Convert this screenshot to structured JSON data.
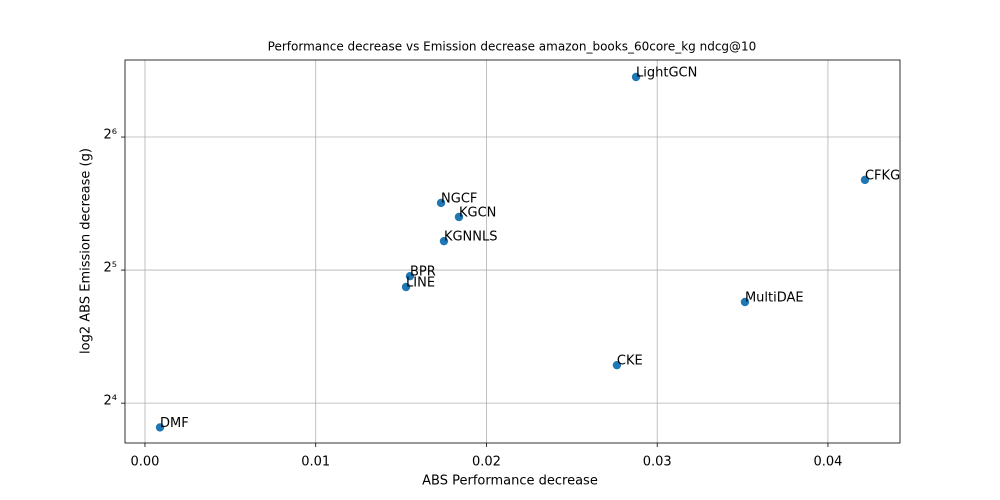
{
  "chart_data": {
    "type": "scatter",
    "title": "Performance decrease vs Emission decrease amazon_books_60core_kg ndcg@10",
    "x_label": "ABS Performance decrease",
    "y_label": "log2 ABS Emission decrease (g)",
    "labels": [
      "LightGCN",
      "CFKG",
      "NGCF",
      "KGCN",
      "KGNNLS",
      "BPR",
      "LINE",
      "MultiDAE",
      "CKE",
      "DMF"
    ],
    "x": [
      0.02876,
      0.04217,
      0.01734,
      0.01839,
      0.01751,
      0.01552,
      0.01529,
      0.03514,
      0.02764,
      0.00088
    ],
    "values": [
      87.5,
      51.2,
      45.4,
      42.2,
      37.2,
      31.0,
      29.3,
      27.1,
      19.5,
      14.1
    ],
    "color": "#1f77b4",
    "xlim": [
      -0.00117,
      0.04422
    ],
    "ylim": [
      13.0,
      95.6
    ],
    "yscale_log_base": 2,
    "xticks": [
      {
        "value": 0,
        "label": "0.00"
      },
      0.01,
      0.02,
      0.03,
      0.04
    ],
    "yticks": [
      {
        "value": 16,
        "label": "2⁴"
      },
      {
        "value": 32,
        "label": "2⁵"
      },
      {
        "value": 64,
        "label": "2⁶"
      }
    ],
    "grid": true
  }
}
